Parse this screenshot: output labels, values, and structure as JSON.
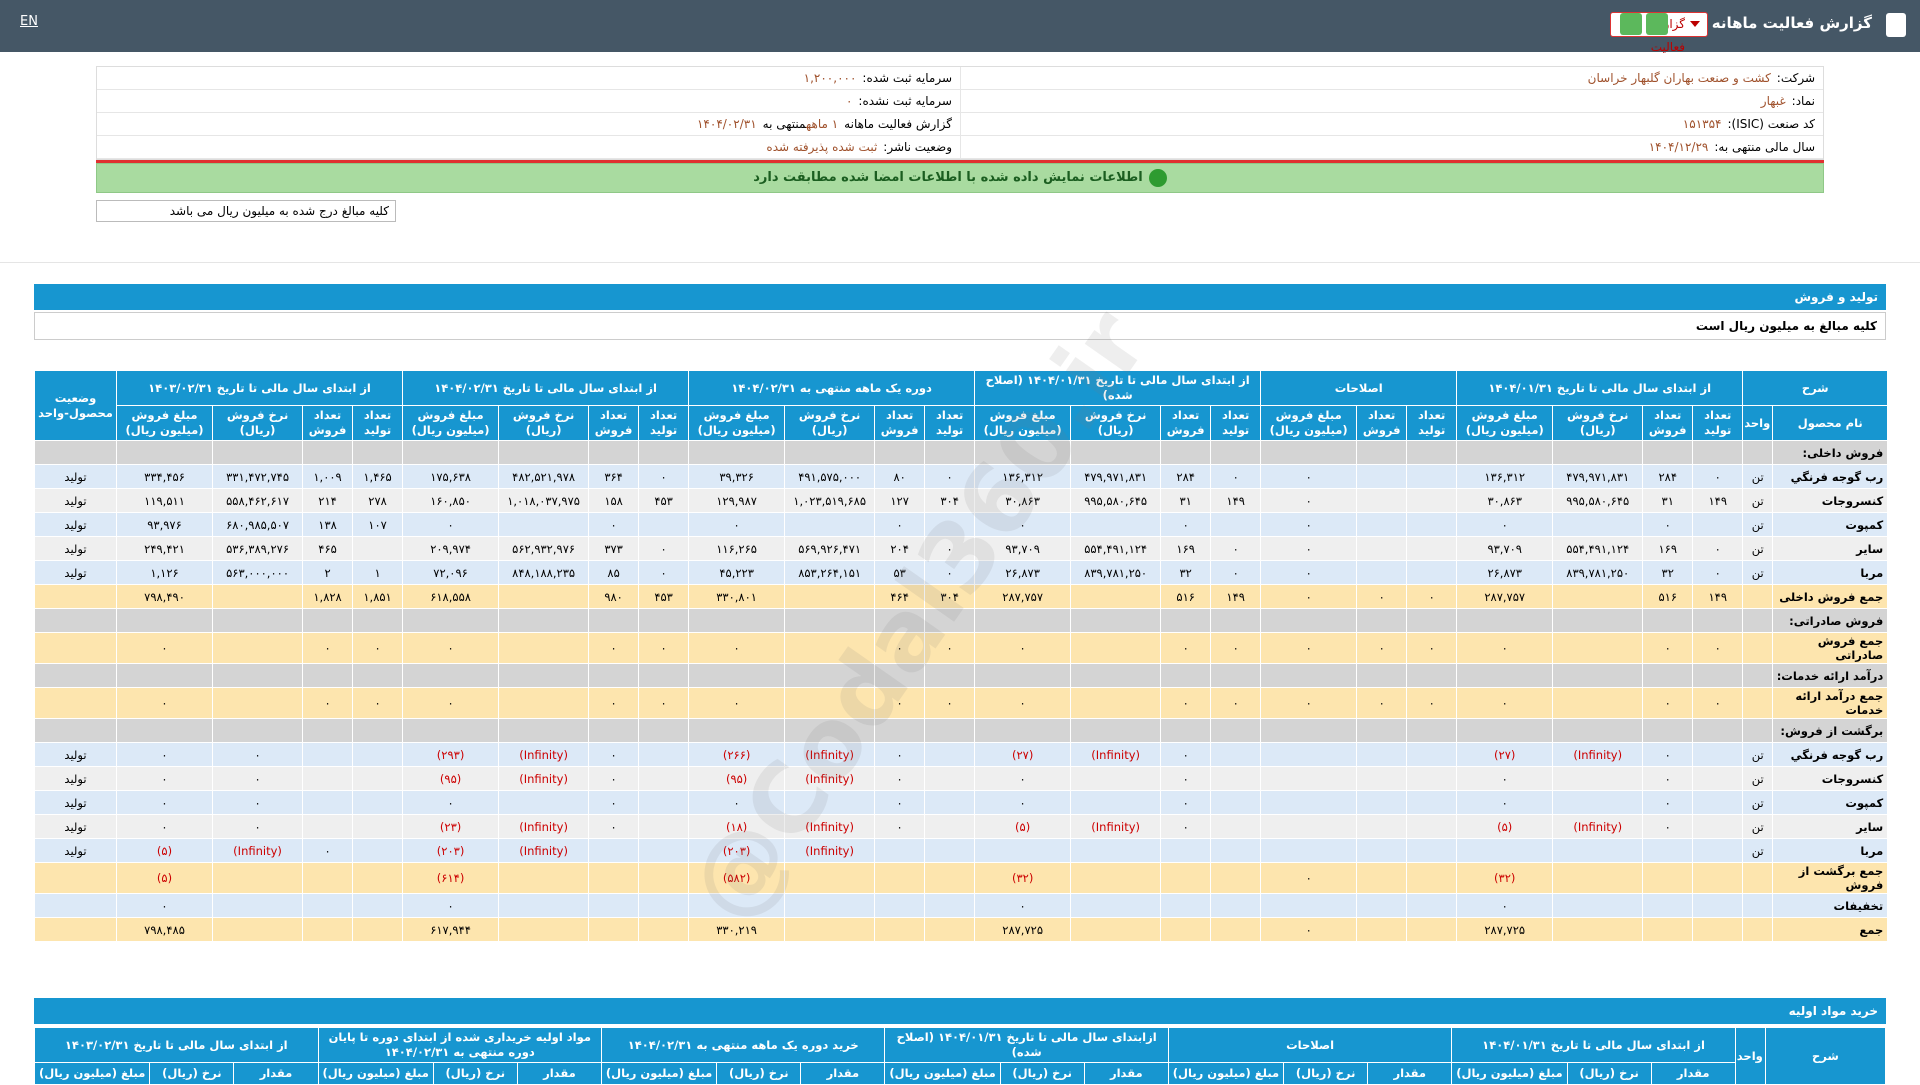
{
  "header": {
    "title": "گزارش فعالیت ماهانه",
    "dropdown": "گزارش فعالیت",
    "lang": "EN"
  },
  "info": {
    "right": [
      {
        "label": "شرکت:",
        "value": "کشت و صنعت بهاران گلبهار خراسان"
      },
      {
        "label": "نماد:",
        "value": "غبهار"
      },
      {
        "label": "کد صنعت (ISIC):",
        "value": "۱۵۱۳۵۴"
      },
      {
        "label": "سال مالی منتهی به:",
        "value": "۱۴۰۴/۱۲/۲۹"
      }
    ],
    "left": [
      {
        "label": "سرمایه ثبت شده:",
        "value": "۱,۲۰۰,۰۰۰"
      },
      {
        "label": "سرمایه ثبت نشده:",
        "value": "۰"
      },
      {
        "label": "گزارش فعالیت ماهانه",
        "value": "۱ ماهه",
        "label2": "منتهی به",
        "value2": "۱۴۰۴/۰۲/۳۱"
      },
      {
        "label": "وضعیت ناشر:",
        "value": "ثبت شده پذیرفته شده"
      }
    ]
  },
  "notice": "اطلاعات نمایش داده شده با اطلاعات امضا شده مطابقت دارد",
  "amounts_note": "کلیه مبالغ درج شده به میلیون ریال می باشد",
  "watermark": "@Codal360.ir",
  "sales": {
    "title": "تولید و فروش",
    "note": "کلیه مبالغ به میلیون ریال است",
    "desc": "شرح",
    "first_columns": [
      "نام محصول",
      "واحد"
    ],
    "status": "وضعیت محصول-واحد",
    "groups": [
      {
        "label": "از ابتدای سال مالی تا تاریخ ۱۴۰۴/۰۱/۳۱",
        "columns": [
          "تعداد تولید",
          "تعداد فروش",
          "نرخ فروش (ریال)",
          "مبلغ فروش (میلیون ریال)"
        ]
      },
      {
        "label": "اصلاحات",
        "columns": [
          "تعداد تولید",
          "تعداد فروش",
          "مبلغ فروش (میلیون ریال)"
        ]
      },
      {
        "label": "از ابتدای سال مالی تا تاریخ ۱۴۰۴/۰۱/۳۱ (اصلاح شده)",
        "columns": [
          "تعداد تولید",
          "تعداد فروش",
          "نرخ فروش (ریال)",
          "مبلغ فروش (میلیون ریال)"
        ]
      },
      {
        "label": "دوره یک ماهه منتهی به ۱۴۰۴/۰۲/۳۱",
        "columns": [
          "تعداد تولید",
          "تعداد فروش",
          "نرخ فروش (ریال)",
          "مبلغ فروش (میلیون ریال)"
        ]
      },
      {
        "label": "از ابتدای سال مالی تا تاریخ ۱۴۰۴/۰۲/۳۱",
        "columns": [
          "تعداد تولید",
          "تعداد فروش",
          "نرخ فروش (ریال)",
          "مبلغ فروش (میلیون ریال)"
        ]
      },
      {
        "label": "از ابتدای سال مالی تا تاریخ ۱۴۰۳/۰۲/۳۱",
        "columns": [
          "تعداد تولید",
          "تعداد فروش",
          "نرخ فروش (ریال)",
          "مبلغ فروش (میلیون ریال)"
        ]
      }
    ],
    "rows": [
      {
        "kind": "section",
        "cells": [
          "فروش داخلی:"
        ]
      },
      {
        "kind": "data",
        "cells": [
          "رب گوجه فرنگي",
          "تن",
          "۰",
          "۲۸۴",
          "۴۷۹,۹۷۱,۸۳۱",
          "۱۳۶,۳۱۲",
          "",
          "",
          "۰",
          "۰",
          "۲۸۴",
          "۴۷۹,۹۷۱,۸۳۱",
          "۱۳۶,۳۱۲",
          "۰",
          "۸۰",
          "۴۹۱,۵۷۵,۰۰۰",
          "۳۹,۳۲۶",
          "۰",
          "۳۶۴",
          "۴۸۲,۵۲۱,۹۷۸",
          "۱۷۵,۶۳۸",
          "۱,۴۶۵",
          "۱,۰۰۹",
          "۳۳۱,۴۷۲,۷۴۵",
          "۳۳۴,۴۵۶",
          "تولید"
        ]
      },
      {
        "kind": "data",
        "cells": [
          "کنسروجات",
          "تن",
          "۱۴۹",
          "۳۱",
          "۹۹۵,۵۸۰,۶۴۵",
          "۳۰,۸۶۳",
          "",
          "",
          "۰",
          "۱۴۹",
          "۳۱",
          "۹۹۵,۵۸۰,۶۴۵",
          "۳۰,۸۶۳",
          "۳۰۴",
          "۱۲۷",
          "۱,۰۲۳,۵۱۹,۶۸۵",
          "۱۲۹,۹۸۷",
          "۴۵۳",
          "۱۵۸",
          "۱,۰۱۸,۰۳۷,۹۷۵",
          "۱۶۰,۸۵۰",
          "۲۷۸",
          "۲۱۴",
          "۵۵۸,۴۶۲,۶۱۷",
          "۱۱۹,۵۱۱",
          "تولید"
        ]
      },
      {
        "kind": "data",
        "cells": [
          "کمپوت",
          "تن",
          "",
          "۰",
          "",
          "۰",
          "",
          "",
          "۰",
          "",
          "۰",
          "",
          "۰",
          "",
          "۰",
          "",
          "۰",
          "",
          "۰",
          "",
          "۰",
          "۱۰۷",
          "۱۳۸",
          "۶۸۰,۹۸۵,۵۰۷",
          "۹۳,۹۷۶",
          "تولید"
        ]
      },
      {
        "kind": "data",
        "cells": [
          "سایر",
          "تن",
          "۰",
          "۱۶۹",
          "۵۵۴,۴۹۱,۱۲۴",
          "۹۳,۷۰۹",
          "",
          "",
          "۰",
          "۰",
          "۱۶۹",
          "۵۵۴,۴۹۱,۱۲۴",
          "۹۳,۷۰۹",
          "۰",
          "۲۰۴",
          "۵۶۹,۹۲۶,۴۷۱",
          "۱۱۶,۲۶۵",
          "۰",
          "۳۷۳",
          "۵۶۲,۹۳۲,۹۷۶",
          "۲۰۹,۹۷۴",
          "",
          "۴۶۵",
          "۵۳۶,۳۸۹,۲۷۶",
          "۲۴۹,۴۲۱",
          "تولید"
        ]
      },
      {
        "kind": "data",
        "cells": [
          "مربا",
          "تن",
          "۰",
          "۳۲",
          "۸۳۹,۷۸۱,۲۵۰",
          "۲۶,۸۷۳",
          "",
          "",
          "۰",
          "۰",
          "۳۲",
          "۸۳۹,۷۸۱,۲۵۰",
          "۲۶,۸۷۳",
          "۰",
          "۵۳",
          "۸۵۳,۲۶۴,۱۵۱",
          "۴۵,۲۲۳",
          "۰",
          "۸۵",
          "۸۴۸,۱۸۸,۲۳۵",
          "۷۲,۰۹۶",
          "۱",
          "۲",
          "۵۶۳,۰۰۰,۰۰۰",
          "۱,۱۲۶",
          "تولید"
        ]
      },
      {
        "kind": "total",
        "cells": [
          "جمع فروش داخلی",
          "",
          "۱۴۹",
          "۵۱۶",
          "",
          "۲۸۷,۷۵۷",
          "۰",
          "۰",
          "۰",
          "۱۴۹",
          "۵۱۶",
          "",
          "۲۸۷,۷۵۷",
          "۳۰۴",
          "۴۶۴",
          "",
          "۳۳۰,۸۰۱",
          "۴۵۳",
          "۹۸۰",
          "",
          "۶۱۸,۵۵۸",
          "۱,۸۵۱",
          "۱,۸۲۸",
          "",
          "۷۹۸,۴۹۰",
          ""
        ]
      },
      {
        "kind": "section",
        "cells": [
          "فروش صادراتی:"
        ]
      },
      {
        "kind": "total",
        "cells": [
          "جمع فروش صادراتی",
          "",
          "۰",
          "۰",
          "",
          "۰",
          "۰",
          "۰",
          "۰",
          "۰",
          "۰",
          "",
          "۰",
          "۰",
          "۰",
          "",
          "۰",
          "۰",
          "۰",
          "",
          "۰",
          "۰",
          "۰",
          "",
          "۰",
          ""
        ]
      },
      {
        "kind": "section",
        "cells": [
          "درآمد ارائه خدمات:"
        ]
      },
      {
        "kind": "total",
        "cells": [
          "جمع درآمد ارائه خدمات",
          "",
          "۰",
          "۰",
          "",
          "۰",
          "۰",
          "۰",
          "۰",
          "۰",
          "۰",
          "",
          "۰",
          "۰",
          "۰",
          "",
          "۰",
          "۰",
          "۰",
          "",
          "۰",
          "۰",
          "۰",
          "",
          "۰",
          ""
        ]
      },
      {
        "kind": "section",
        "cells": [
          "برگشت از فروش:"
        ]
      },
      {
        "kind": "data",
        "cells": [
          "رب گوجه فرنگي",
          "تن",
          "",
          "۰",
          "(Infinity)",
          "(۲۷)",
          "",
          "",
          "",
          "",
          "۰",
          "(Infinity)",
          "(۲۷)",
          "",
          "۰",
          "(Infinity)",
          "(۲۶۶)",
          "",
          "۰",
          "(Infinity)",
          "(۲۹۳)",
          "",
          "",
          "۰",
          "۰",
          "تولید"
        ]
      },
      {
        "kind": "data",
        "cells": [
          "کنسروجات",
          "تن",
          "",
          "۰",
          "",
          "۰",
          "",
          "",
          "",
          "",
          "۰",
          "",
          "۰",
          "",
          "۰",
          "(Infinity)",
          "(۹۵)",
          "",
          "۰",
          "(Infinity)",
          "(۹۵)",
          "",
          "",
          "۰",
          "۰",
          "تولید"
        ]
      },
      {
        "kind": "data",
        "cells": [
          "کمپوت",
          "تن",
          "",
          "۰",
          "",
          "۰",
          "",
          "",
          "",
          "",
          "۰",
          "",
          "۰",
          "",
          "۰",
          "",
          "۰",
          "",
          "۰",
          "",
          "۰",
          "",
          "",
          "۰",
          "۰",
          "تولید"
        ]
      },
      {
        "kind": "data",
        "cells": [
          "سایر",
          "تن",
          "",
          "۰",
          "(Infinity)",
          "(۵)",
          "",
          "",
          "",
          "",
          "۰",
          "(Infinity)",
          "(۵)",
          "",
          "۰",
          "(Infinity)",
          "(۱۸)",
          "",
          "۰",
          "(Infinity)",
          "(۲۳)",
          "",
          "",
          "۰",
          "۰",
          "تولید"
        ]
      },
      {
        "kind": "data",
        "cells": [
          "مربا",
          "تن",
          "",
          "",
          "",
          "",
          "",
          "",
          "",
          "",
          "",
          "",
          "",
          "",
          "",
          "(Infinity)",
          "(۲۰۳)",
          "",
          "",
          "(Infinity)",
          "(۲۰۳)",
          "",
          "۰",
          "(Infinity)",
          "(۵)",
          "تولید"
        ]
      },
      {
        "kind": "total",
        "cells": [
          "جمع برگشت از فروش",
          "",
          "",
          "",
          "",
          "(۳۲)",
          "",
          "",
          "۰",
          "",
          "",
          "",
          "(۳۲)",
          "",
          "",
          "",
          "(۵۸۲)",
          "",
          "",
          "",
          "(۶۱۴)",
          "",
          "",
          "",
          "(۵)",
          ""
        ]
      },
      {
        "kind": "data",
        "cells": [
          "تخفیفات",
          "",
          "",
          "",
          "",
          "۰",
          "",
          "",
          "",
          "",
          "",
          "",
          "۰",
          "",
          "",
          "",
          "",
          "",
          "",
          "",
          "۰",
          "",
          "",
          "",
          "۰",
          ""
        ]
      },
      {
        "kind": "total",
        "cells": [
          "جمع",
          "",
          "",
          "",
          "",
          "۲۸۷,۷۲۵",
          "",
          "",
          "۰",
          "",
          "",
          "",
          "۲۸۷,۷۲۵",
          "",
          "",
          "",
          "۳۳۰,۲۱۹",
          "",
          "",
          "",
          "۶۱۷,۹۴۴",
          "",
          "",
          "",
          "۷۹۸,۴۸۵",
          ""
        ]
      }
    ]
  },
  "purchases": {
    "title": "خرید مواد اولیه",
    "first_columns": [
      "شرح",
      "واحد"
    ],
    "groups": [
      {
        "label": "از ابتدای سال مالی تا تاریخ ۱۴۰۴/۰۱/۳۱",
        "columns": [
          "مقدار",
          "نرخ (ریال)",
          "مبلغ (میلیون ریال)"
        ]
      },
      {
        "label": "اصلاحات",
        "columns": [
          "مقدار",
          "نرخ (ریال)",
          "مبلغ (میلیون ریال)"
        ]
      },
      {
        "label": "ازابتدای سال مالی تا تاریخ ۱۴۰۴/۰۱/۳۱ (اصلاح شده)",
        "columns": [
          "مقدار",
          "نرخ (ریال)",
          "مبلغ (میلیون ریال)"
        ]
      },
      {
        "label": "خرید دوره یک ماهه منتهی به ۱۴۰۴/۰۲/۳۱",
        "columns": [
          "مقدار",
          "نرخ (ریال)",
          "مبلغ (میلیون ریال)"
        ]
      },
      {
        "label": "مواد اولیه خریداری شده از ابتدای دوره تا پایان دوره منتهی به ۱۴۰۴/۰۲/۳۱",
        "columns": [
          "مقدار",
          "نرخ (ریال)",
          "مبلغ (میلیون ریال)"
        ]
      },
      {
        "label": "از ابتدای سال مالی تا تاریخ ۱۴۰۳/۰۲/۳۱",
        "columns": [
          "مقدار",
          "نرخ (ریال)",
          "مبلغ (میلیون ریال)"
        ]
      }
    ]
  }
}
